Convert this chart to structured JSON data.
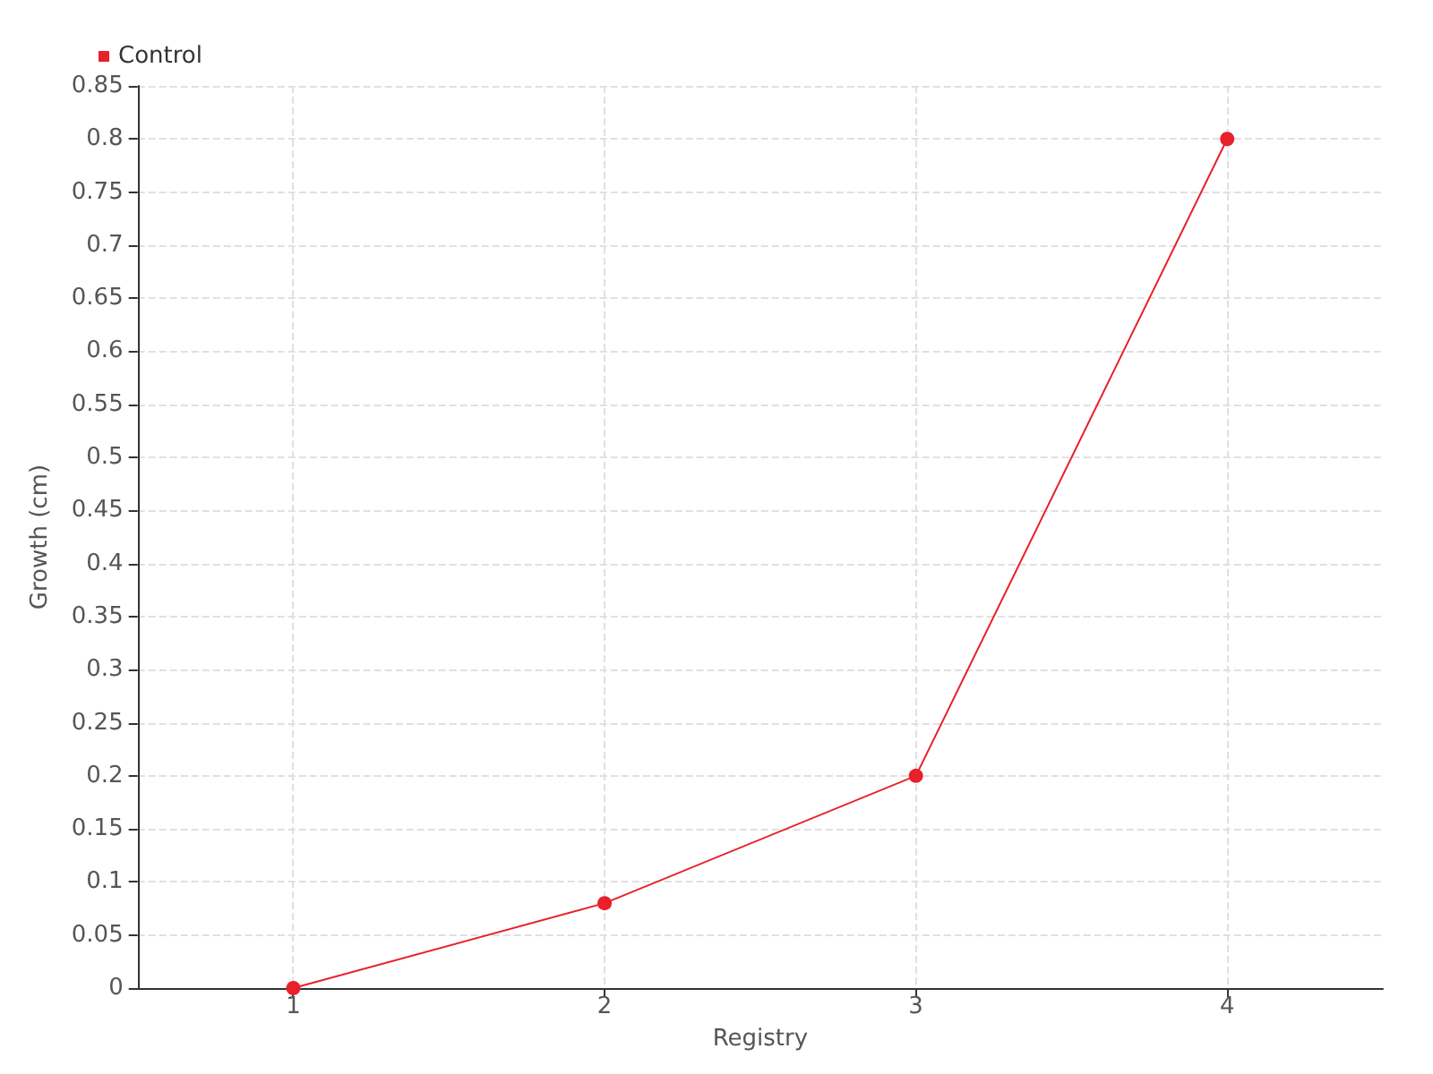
{
  "chart_data": {
    "type": "line",
    "xlabel": "Registry",
    "ylabel": "Growth (cm)",
    "x": [
      1,
      2,
      3,
      4
    ],
    "xlim": [
      0.5,
      4.5
    ],
    "xticks": [
      1,
      2,
      3,
      4
    ],
    "series": [
      {
        "name": "Control",
        "color": "#e8202a",
        "values": [
          0,
          0.08,
          0.2,
          0.8
        ]
      }
    ],
    "ylim": [
      0,
      0.85
    ],
    "yticks": [
      0,
      0.05,
      0.1,
      0.15,
      0.2,
      0.25,
      0.3,
      0.35,
      0.4,
      0.45,
      0.5,
      0.55,
      0.6,
      0.65,
      0.7,
      0.75,
      0.8,
      0.85
    ],
    "grid": true,
    "legend": "top left",
    "marker": "circle",
    "line_style": "solid"
  }
}
